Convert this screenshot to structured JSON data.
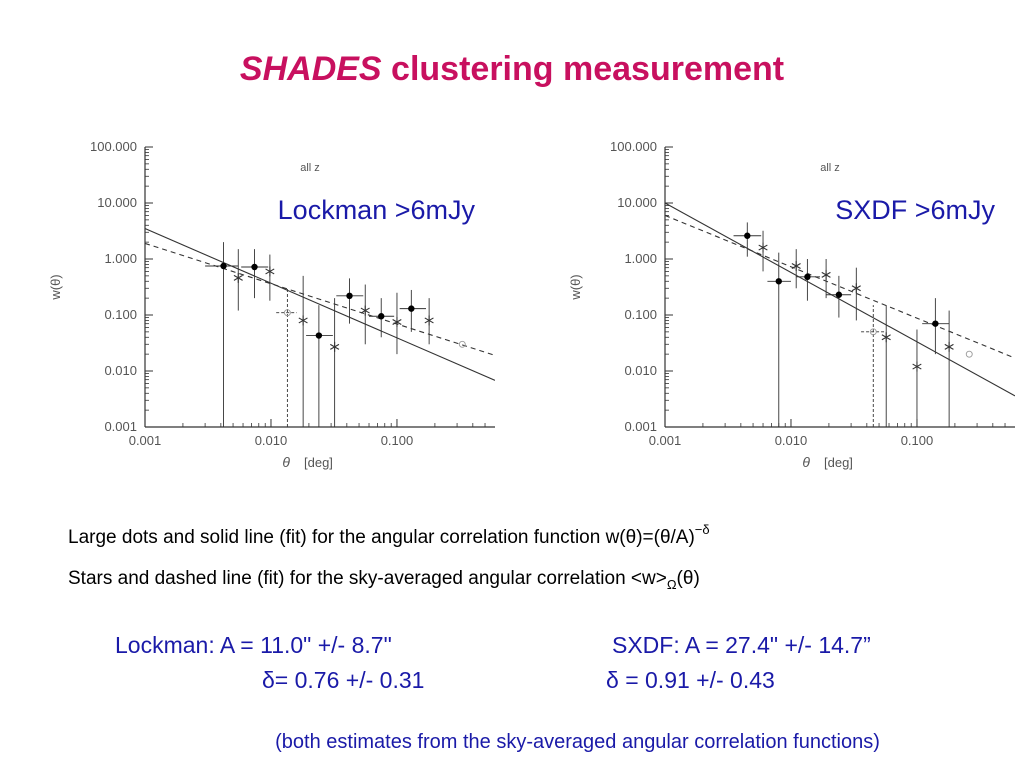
{
  "slide": {
    "title_italic": "SHADES",
    "title_rest": " clustering measurement",
    "caption1_main": "Large dots and solid line (fit) for the angular correlation function w(θ)=(θ/A)",
    "caption1_sup": "−δ",
    "caption2_main": "Stars and dashed line (fit) for the sky-averaged angular correlation <w>",
    "caption2_sub": "Ω",
    "caption2_end": "(θ)",
    "lockman_A": "Lockman: A = 11.0\" +/- 8.7\"",
    "lockman_delta": "δ= 0.76 +/- 0.31",
    "sxdf_A": "SXDF: A = 27.4\" +/- 14.7”",
    "sxdf_delta": "δ = 0.91 +/- 0.43",
    "footnote": "(both estimates from the sky-averaged angular correlation functions)"
  },
  "colors": {
    "title": "#c8105f",
    "annotation_blue": "#1a1aa8",
    "plot_ink": "#333333"
  },
  "chart_data": [
    {
      "type": "scatter",
      "panel_label": "Lockman >6mJy",
      "inner_label": "all z",
      "xlabel": "θ",
      "xunit": "deg",
      "ylabel": "w(θ)",
      "xscale": "log",
      "yscale": "log",
      "xlim": [
        0.001,
        0.6
      ],
      "ylim": [
        0.001,
        100
      ],
      "xticks": [
        "0.001",
        "0.010",
        "0.100"
      ],
      "yticks": [
        "100.000",
        "10.000",
        "1.000",
        "0.100",
        "0.010",
        "0.001"
      ],
      "series": [
        {
          "marker": "dot",
          "points": [
            {
              "x": 0.0042,
              "y": 0.75,
              "xerr": [
                0.003,
                0.0055
              ],
              "yerr": [
                0.001,
                2.0
              ]
            },
            {
              "x": 0.0074,
              "y": 0.72,
              "xerr": [
                0.0058,
                0.0095
              ],
              "yerr": [
                0.2,
                1.5
              ]
            },
            {
              "x": 0.024,
              "y": 0.043,
              "xerr": [
                0.019,
                0.031
              ],
              "yerr": [
                0.001,
                0.15
              ]
            },
            {
              "x": 0.042,
              "y": 0.22,
              "xerr": [
                0.033,
                0.054
              ],
              "yerr": [
                0.07,
                0.45
              ]
            },
            {
              "x": 0.075,
              "y": 0.095,
              "xerr": [
                0.06,
                0.095
              ],
              "yerr": [
                0.04,
                0.2
              ]
            },
            {
              "x": 0.13,
              "y": 0.13,
              "xerr": [
                0.105,
                0.17
              ],
              "yerr": [
                0.05,
                0.28
              ]
            }
          ]
        },
        {
          "marker": "star",
          "points": [
            {
              "x": 0.0055,
              "y": 0.46,
              "yerr": [
                0.12,
                1.5
              ]
            },
            {
              "x": 0.0098,
              "y": 0.6,
              "yerr": [
                0.18,
                1.2
              ]
            },
            {
              "x": 0.018,
              "y": 0.08,
              "yerr": [
                0.001,
                0.5
              ]
            },
            {
              "x": 0.032,
              "y": 0.027,
              "yerr": [
                0.001,
                0.2
              ]
            },
            {
              "x": 0.056,
              "y": 0.12,
              "yerr": [
                0.03,
                0.35
              ]
            },
            {
              "x": 0.1,
              "y": 0.075,
              "yerr": [
                0.02,
                0.25
              ]
            },
            {
              "x": 0.18,
              "y": 0.08,
              "yerr": [
                0.03,
                0.2
              ]
            }
          ]
        },
        {
          "marker": "open-circle",
          "points": [
            {
              "x": 0.0135,
              "y": 0.11,
              "xerr": [
                0.011,
                0.016
              ],
              "yerr": [
                0.001,
                0.3
              ]
            },
            {
              "x": 0.33,
              "y": 0.03
            }
          ]
        }
      ],
      "fits": [
        {
          "style": "solid",
          "points": [
            [
              0.001,
              3.5
            ],
            [
              0.6,
              0.0068
            ]
          ]
        },
        {
          "style": "dashed",
          "points": [
            [
              0.001,
              1.9
            ],
            [
              0.6,
              0.019
            ]
          ]
        }
      ]
    },
    {
      "type": "scatter",
      "panel_label": "SXDF >6mJy",
      "inner_label": "all z",
      "xlabel": "θ",
      "xunit": "deg",
      "ylabel": "w(θ)",
      "xscale": "log",
      "yscale": "log",
      "xlim": [
        0.001,
        0.6
      ],
      "ylim": [
        0.001,
        100
      ],
      "xticks": [
        "0.001",
        "0.010",
        "0.100"
      ],
      "yticks": [
        "100.000",
        "10.000",
        "1.000",
        "0.100",
        "0.010",
        "0.001"
      ],
      "series": [
        {
          "marker": "dot",
          "points": [
            {
              "x": 0.0045,
              "y": 2.6,
              "xerr": [
                0.0035,
                0.0058
              ],
              "yerr": [
                1.1,
                4.5
              ]
            },
            {
              "x": 0.008,
              "y": 0.4,
              "xerr": [
                0.0065,
                0.01
              ],
              "yerr": [
                0.001,
                1.3
              ]
            },
            {
              "x": 0.0135,
              "y": 0.48,
              "xerr": [
                0.011,
                0.017
              ],
              "yerr": [
                0.18,
                1.0
              ]
            },
            {
              "x": 0.024,
              "y": 0.23,
              "xerr": [
                0.019,
                0.03
              ],
              "yerr": [
                0.09,
                0.5
              ]
            },
            {
              "x": 0.14,
              "y": 0.07,
              "xerr": [
                0.11,
                0.18
              ],
              "yerr": [
                0.02,
                0.2
              ]
            }
          ]
        },
        {
          "marker": "star",
          "points": [
            {
              "x": 0.006,
              "y": 1.6,
              "yerr": [
                0.6,
                3.2
              ]
            },
            {
              "x": 0.011,
              "y": 0.75,
              "yerr": [
                0.3,
                1.5
              ]
            },
            {
              "x": 0.019,
              "y": 0.52,
              "yerr": [
                0.2,
                1.0
              ]
            },
            {
              "x": 0.033,
              "y": 0.3,
              "yerr": [
                0.08,
                0.7
              ]
            },
            {
              "x": 0.057,
              "y": 0.04,
              "yerr": [
                0.001,
                0.15
              ]
            },
            {
              "x": 0.1,
              "y": 0.012,
              "yerr": [
                0.001,
                0.055
              ]
            },
            {
              "x": 0.18,
              "y": 0.027,
              "yerr": [
                0.001,
                0.12
              ]
            }
          ]
        },
        {
          "marker": "open-circle",
          "points": [
            {
              "x": 0.045,
              "y": 0.05,
              "xerr": [
                0.036,
                0.055
              ],
              "yerr": [
                0.001,
                0.15
              ]
            },
            {
              "x": 0.26,
              "y": 0.02
            }
          ]
        }
      ],
      "fits": [
        {
          "style": "solid",
          "points": [
            [
              0.001,
              10.0
            ],
            [
              0.6,
              0.0036
            ]
          ]
        },
        {
          "style": "dashed",
          "points": [
            [
              0.001,
              6.0
            ],
            [
              0.6,
              0.017
            ]
          ]
        }
      ]
    }
  ]
}
